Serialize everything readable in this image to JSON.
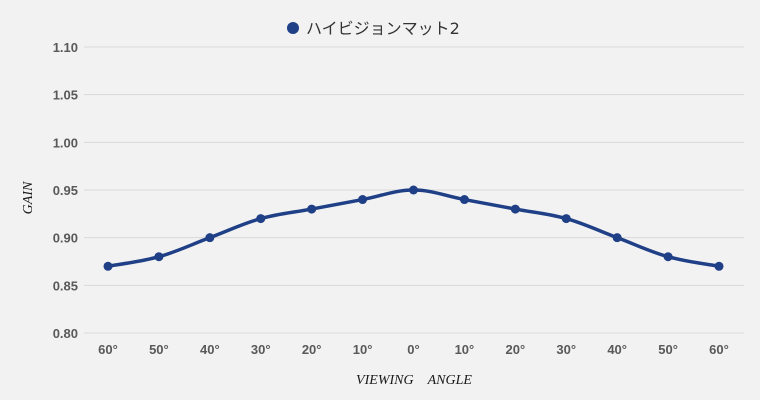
{
  "chart_data": {
    "type": "line",
    "title": "",
    "xlabel": "VIEWING　ANGLE",
    "ylabel": "GAIN",
    "categories": [
      "60°",
      "50°",
      "40°",
      "30°",
      "20°",
      "10°",
      "0°",
      "10°",
      "20°",
      "30°",
      "40°",
      "50°",
      "60°"
    ],
    "series": [
      {
        "name": "ハイビジョンマット2",
        "values": [
          0.87,
          0.88,
          0.9,
          0.92,
          0.93,
          0.94,
          0.95,
          0.94,
          0.93,
          0.92,
          0.9,
          0.88,
          0.87
        ]
      }
    ],
    "yticks": [
      "0.80",
      "0.85",
      "0.90",
      "0.95",
      "1.00",
      "1.05",
      "1.10"
    ],
    "ylim": [
      0.8,
      1.1
    ],
    "grid": true,
    "legend_position": "top-center",
    "smooth": true,
    "markers": true,
    "colors": {
      "series": "#1f3f86",
      "background": "#f2f2f2",
      "grid": "#d9d9d9",
      "tick_text": "#595959"
    }
  }
}
